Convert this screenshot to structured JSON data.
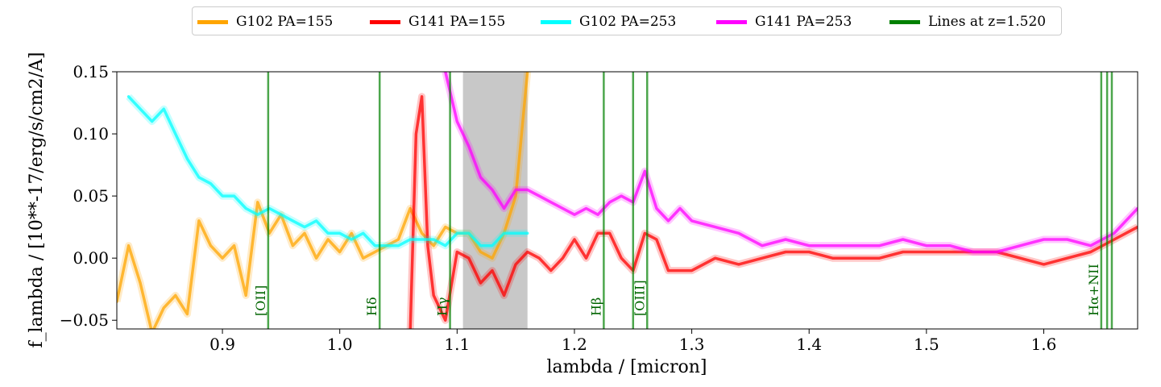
{
  "chart_data": {
    "type": "line",
    "xlabel": "lambda / [micron]",
    "ylabel": "f_lambda / [10**-17/erg/s/cm2/A]",
    "xlim": [
      0.81,
      1.68
    ],
    "ylim": [
      -0.057,
      0.15
    ],
    "xticks": [
      0.9,
      1.0,
      1.1,
      1.2,
      1.3,
      1.4,
      1.5,
      1.6
    ],
    "xtick_labels": [
      "0.9",
      "1.0",
      "1.1",
      "1.2",
      "1.3",
      "1.4",
      "1.5",
      "1.6"
    ],
    "yticks": [
      -0.05,
      0.0,
      0.05,
      0.1,
      0.15
    ],
    "ytick_labels": [
      "−0.05",
      "0.00",
      "0.05",
      "0.10",
      "0.15"
    ],
    "grid": false,
    "legend_position": "top-center",
    "shaded_region": {
      "x0": 1.105,
      "x1": 1.16,
      "color": "#c8c8c8"
    },
    "series": [
      {
        "name": "G102 PA=155",
        "color": "#FFA500",
        "x": [
          0.81,
          0.82,
          0.83,
          0.84,
          0.85,
          0.86,
          0.87,
          0.88,
          0.89,
          0.9,
          0.91,
          0.92,
          0.93,
          0.94,
          0.95,
          0.96,
          0.97,
          0.98,
          0.99,
          1.0,
          1.01,
          1.02,
          1.03,
          1.04,
          1.05,
          1.06,
          1.07,
          1.08,
          1.09,
          1.1,
          1.11,
          1.12,
          1.13,
          1.14,
          1.15,
          1.16
        ],
        "y": [
          -0.035,
          0.01,
          -0.02,
          -0.06,
          -0.04,
          -0.03,
          -0.045,
          0.03,
          0.01,
          0.0,
          0.01,
          -0.03,
          0.045,
          0.02,
          0.035,
          0.01,
          0.02,
          0.0,
          0.015,
          0.005,
          0.02,
          0.0,
          0.005,
          0.01,
          0.015,
          0.04,
          0.02,
          0.01,
          0.025,
          0.02,
          0.02,
          0.005,
          0.0,
          0.02,
          0.05,
          0.15
        ]
      },
      {
        "name": "G141 PA=155",
        "color": "#FF0000",
        "x": [
          1.06,
          1.065,
          1.07,
          1.075,
          1.08,
          1.09,
          1.1,
          1.11,
          1.12,
          1.13,
          1.14,
          1.15,
          1.16,
          1.17,
          1.18,
          1.19,
          1.2,
          1.21,
          1.22,
          1.23,
          1.24,
          1.25,
          1.26,
          1.27,
          1.28,
          1.29,
          1.3,
          1.32,
          1.34,
          1.36,
          1.38,
          1.4,
          1.42,
          1.44,
          1.46,
          1.48,
          1.5,
          1.52,
          1.54,
          1.56,
          1.58,
          1.6,
          1.62,
          1.64,
          1.66,
          1.68
        ],
        "y": [
          -0.06,
          0.1,
          0.13,
          0.01,
          -0.03,
          -0.05,
          0.005,
          0.0,
          -0.02,
          -0.01,
          -0.03,
          -0.005,
          0.005,
          0.0,
          -0.01,
          0.0,
          0.015,
          0.0,
          0.02,
          0.02,
          0.0,
          -0.01,
          0.02,
          0.015,
          -0.01,
          -0.01,
          -0.01,
          0.0,
          -0.005,
          0.0,
          0.005,
          0.005,
          0.0,
          0.0,
          0.0,
          0.005,
          0.005,
          0.005,
          0.005,
          0.005,
          0.0,
          -0.005,
          0.0,
          0.005,
          0.015,
          0.025
        ]
      },
      {
        "name": "G102 PA=253",
        "color": "#00FFFF",
        "x": [
          0.82,
          0.83,
          0.84,
          0.85,
          0.86,
          0.87,
          0.88,
          0.89,
          0.9,
          0.91,
          0.92,
          0.93,
          0.94,
          0.95,
          0.96,
          0.97,
          0.98,
          0.99,
          1.0,
          1.01,
          1.02,
          1.03,
          1.04,
          1.05,
          1.06,
          1.07,
          1.08,
          1.09,
          1.1,
          1.11,
          1.12,
          1.13,
          1.14,
          1.15,
          1.16
        ],
        "y": [
          0.13,
          0.12,
          0.11,
          0.12,
          0.1,
          0.08,
          0.065,
          0.06,
          0.05,
          0.05,
          0.04,
          0.035,
          0.04,
          0.035,
          0.03,
          0.025,
          0.03,
          0.02,
          0.02,
          0.015,
          0.02,
          0.01,
          0.01,
          0.01,
          0.015,
          0.015,
          0.015,
          0.01,
          0.02,
          0.02,
          0.01,
          0.01,
          0.02,
          0.02,
          0.02
        ]
      },
      {
        "name": "G141 PA=253",
        "color": "#FF00FF",
        "x": [
          1.09,
          1.1,
          1.11,
          1.12,
          1.13,
          1.14,
          1.15,
          1.16,
          1.17,
          1.18,
          1.19,
          1.2,
          1.21,
          1.22,
          1.23,
          1.24,
          1.25,
          1.26,
          1.27,
          1.28,
          1.29,
          1.3,
          1.32,
          1.34,
          1.36,
          1.38,
          1.4,
          1.42,
          1.44,
          1.46,
          1.48,
          1.5,
          1.52,
          1.54,
          1.56,
          1.58,
          1.6,
          1.62,
          1.64,
          1.66,
          1.68
        ],
        "y": [
          0.15,
          0.11,
          0.09,
          0.065,
          0.055,
          0.04,
          0.055,
          0.055,
          0.05,
          0.045,
          0.04,
          0.035,
          0.04,
          0.035,
          0.045,
          0.05,
          0.045,
          0.07,
          0.04,
          0.03,
          0.04,
          0.03,
          0.025,
          0.02,
          0.01,
          0.015,
          0.01,
          0.01,
          0.01,
          0.01,
          0.015,
          0.01,
          0.01,
          0.005,
          0.005,
          0.01,
          0.015,
          0.015,
          0.01,
          0.02,
          0.04
        ]
      }
    ],
    "line_labels": {
      "name": "Lines at z=1.520",
      "color": "#008000",
      "lines": [
        {
          "x": 0.939,
          "label": "[OII]"
        },
        {
          "x": 1.034,
          "label": "Hδ"
        },
        {
          "x": 1.094,
          "label": "Hγ"
        },
        {
          "x": 1.225,
          "label": "Hβ"
        },
        {
          "x": 1.25,
          "label": ""
        },
        {
          "x": 1.262,
          "label": "[OIII]"
        },
        {
          "x": 1.649,
          "label": "Hα+NII"
        },
        {
          "x": 1.654,
          "label": ""
        },
        {
          "x": 1.658,
          "label": ""
        }
      ]
    }
  }
}
